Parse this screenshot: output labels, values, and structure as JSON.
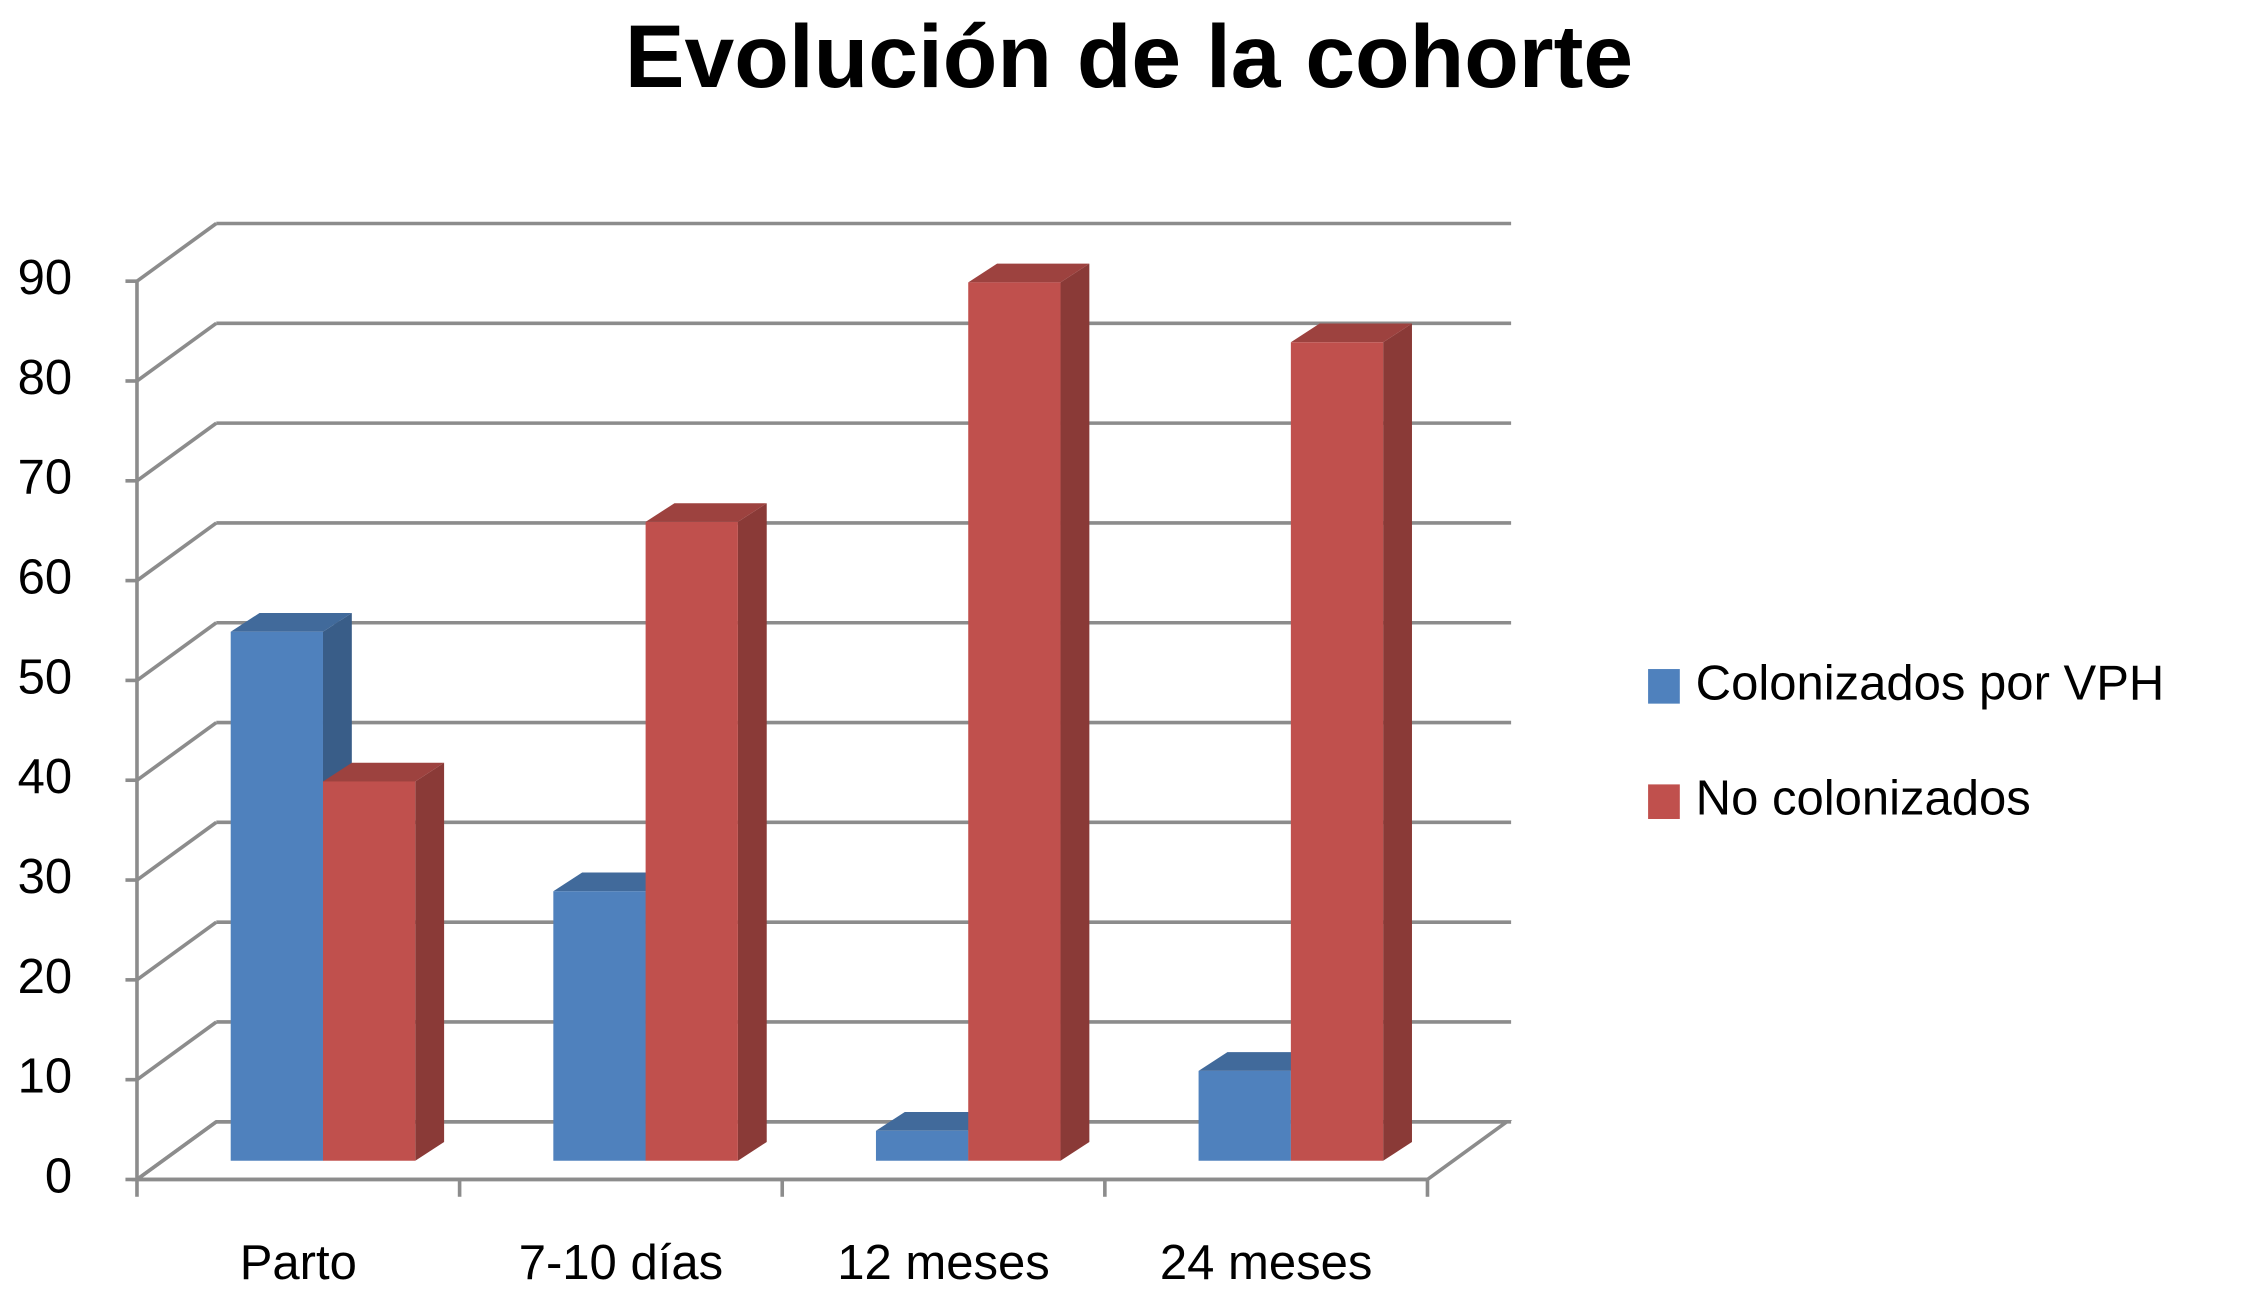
{
  "chart_data": {
    "type": "bar3d",
    "title": "Evolución de la cohorte",
    "categories": [
      "Parto",
      "7-10 días",
      "12 meses",
      "24 meses"
    ],
    "series": [
      {
        "name": "Colonizados por VPH",
        "color": "#4f81bd",
        "values": [
          53,
          27,
          3,
          9
        ]
      },
      {
        "name": "No colonizados",
        "color": "#c0504d",
        "values": [
          38,
          64,
          88,
          82
        ]
      }
    ],
    "ylim": [
      0,
      90
    ],
    "yticks": [
      0,
      10,
      20,
      30,
      40,
      50,
      60,
      70,
      80,
      90
    ],
    "grid": true,
    "legend": "right"
  }
}
